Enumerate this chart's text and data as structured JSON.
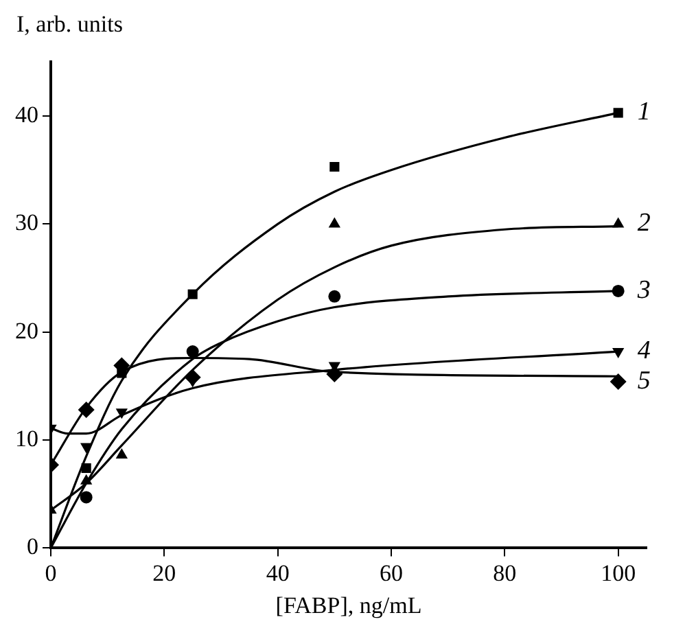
{
  "chart_data": {
    "type": "scatter",
    "xlabel": "[FABP], ng/mL",
    "ylabel": "I, arb. units",
    "xlim": [
      0,
      105
    ],
    "ylim": [
      0,
      45
    ],
    "xticks": [
      0,
      20,
      40,
      60,
      80,
      100
    ],
    "yticks": [
      0,
      10,
      20,
      30,
      40
    ],
    "grid": false,
    "legend": false,
    "x": [
      0,
      6.25,
      12.5,
      25,
      50,
      100
    ],
    "series": [
      {
        "name": "1",
        "color": "#000000",
        "marker": "square",
        "values": [
          null,
          7.4,
          16.2,
          23.5,
          35.3,
          40.3
        ]
      },
      {
        "name": "2",
        "color": "#000000",
        "marker": "triangle",
        "values": [
          3.5,
          6.2,
          8.6,
          null,
          30,
          30
        ]
      },
      {
        "name": "3",
        "color": "#000000",
        "marker": "circle",
        "values": [
          null,
          4.7,
          null,
          18.2,
          23.3,
          23.8
        ]
      },
      {
        "name": "4",
        "color": "#000000",
        "marker": "triangle-down",
        "values": [
          11.1,
          9.4,
          12.6,
          15.5,
          16.9,
          18.2
        ]
      },
      {
        "name": "5",
        "color": "#000000",
        "marker": "diamond",
        "values": [
          7.7,
          12.8,
          16.9,
          15.8,
          16.1,
          15.4
        ]
      },
      {
        "type": "line",
        "color": "#000000",
        "marker": "none",
        "x": [
          0,
          6.25,
          12.5,
          25,
          40,
          50,
          60,
          80,
          100
        ],
        "values": [
          0,
          8.5,
          15.5,
          23.5,
          30,
          33,
          35,
          38,
          40.3
        ]
      },
      {
        "type": "line",
        "color": "#000000",
        "marker": "none",
        "x": [
          0,
          6.25,
          12.5,
          25,
          40,
          50,
          60,
          80,
          100
        ],
        "values": [
          3.5,
          6,
          9.5,
          16.5,
          23,
          26,
          28,
          29.5,
          29.8
        ]
      },
      {
        "type": "line",
        "color": "#000000",
        "marker": "none",
        "x": [
          0,
          6.25,
          12.5,
          25,
          30,
          40,
          50,
          70,
          100
        ],
        "values": [
          0,
          6,
          11,
          17.5,
          19,
          21,
          22.3,
          23.3,
          23.8
        ]
      },
      {
        "type": "line",
        "color": "#000000",
        "marker": "none",
        "x": [
          0,
          3,
          6.25,
          12.5,
          25,
          50,
          100
        ],
        "values": [
          11.1,
          10.6,
          10.6,
          12.3,
          14.8,
          16.5,
          18.2
        ]
      },
      {
        "type": "line",
        "color": "#000000",
        "marker": "none",
        "x": [
          0,
          6.25,
          12.5,
          25,
          35,
          50,
          100
        ],
        "values": [
          7.7,
          13,
          16.3,
          17.6,
          17.5,
          16.3,
          15.9
        ]
      }
    ]
  }
}
